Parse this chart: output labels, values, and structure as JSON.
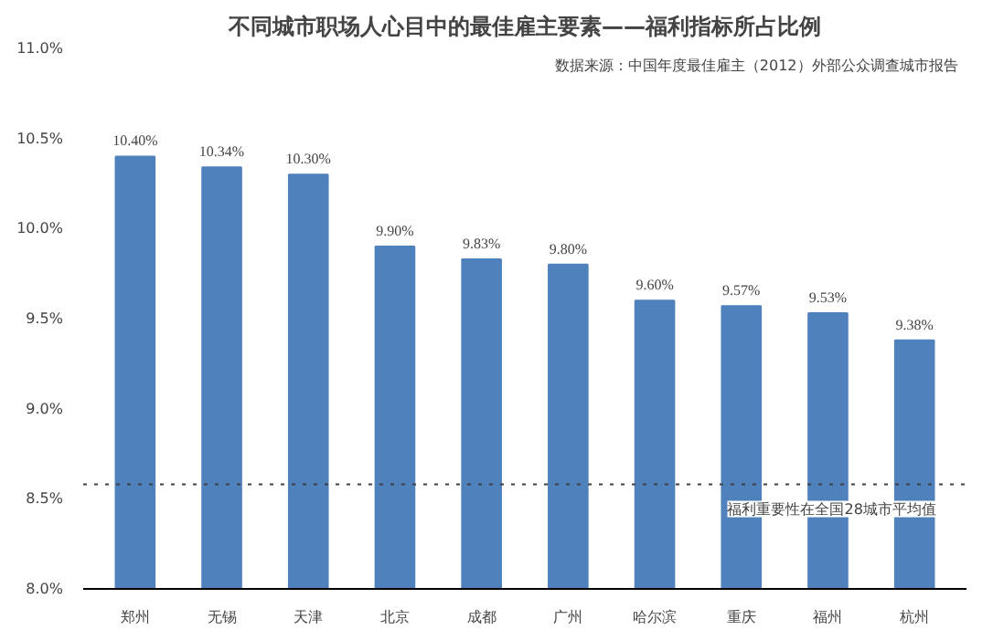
{
  "chart_data": {
    "type": "bar",
    "title": "不同城市职场人心目中的最佳雇主要素——福利指标所占比例",
    "categories": [
      "郑州",
      "无锡",
      "天津",
      "北京",
      "成都",
      "广州",
      "哈尔滨",
      "重庆",
      "福州",
      "杭州"
    ],
    "values": [
      10.4,
      10.34,
      10.3,
      9.9,
      9.83,
      9.8,
      9.6,
      9.57,
      9.53,
      9.38
    ],
    "value_labels": [
      "10.40%",
      "10.34%",
      "10.30%",
      "9.90%",
      "9.83%",
      "9.80%",
      "9.60%",
      "9.57%",
      "9.53%",
      "9.38%"
    ],
    "color": "#4f81bd",
    "ylim": [
      8,
      11
    ],
    "yticks": [
      {
        "value": 8,
        "label": "8.0%"
      },
      {
        "value": 8.5,
        "label": "8.5%"
      },
      {
        "value": 9,
        "label": "9.0%"
      },
      {
        "value": 9.5,
        "label": "9.5%"
      },
      {
        "value": 10,
        "label": "10.0%"
      },
      {
        "value": 10.5,
        "label": "10.5%"
      },
      {
        "value": 11,
        "label": "11.0%"
      }
    ],
    "ref_lines": [
      {
        "axis": "y",
        "value": 8.58,
        "label": "福利重要性在全国28城市平均值",
        "color": "#404040",
        "line_style": "dotted"
      }
    ],
    "annotations": [
      "数据来源：中国年度最佳雇主（2012）外部公众调查城市报告"
    ],
    "grid": false
  }
}
